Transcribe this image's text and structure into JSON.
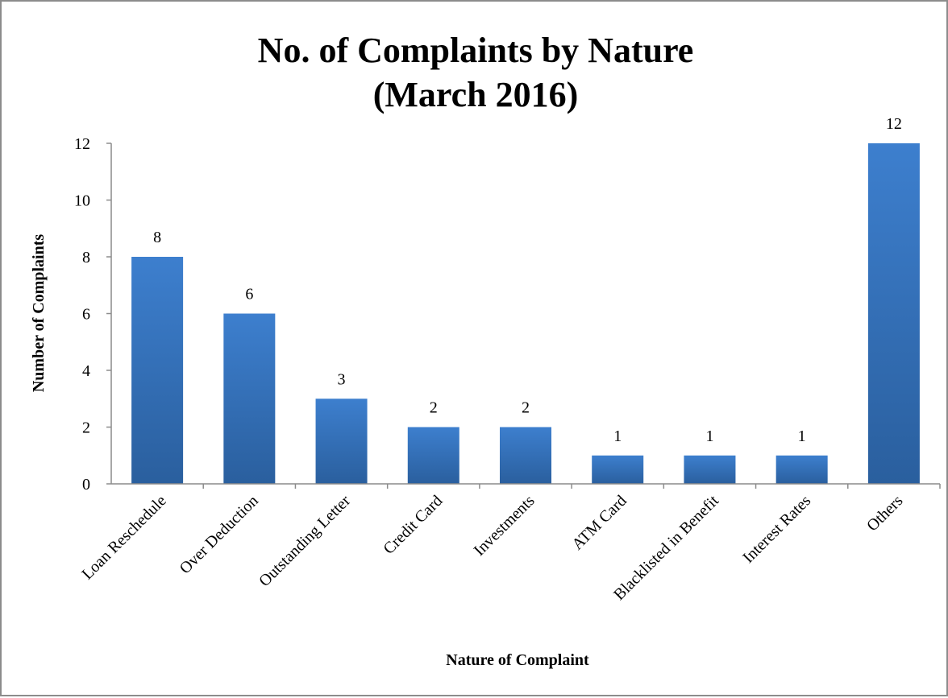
{
  "chart_data": {
    "type": "bar",
    "title_lines": [
      "No. of Complaints by Nature",
      "(March 2016)"
    ],
    "xlabel": "Nature of Complaint",
    "ylabel": "Number of Complaints",
    "categories": [
      "Loan Reschedule",
      "Over Deduction",
      "Outstanding Letter",
      "Credit Card",
      "Investments",
      "ATM Card",
      "Blacklisted in Benefit",
      "Interest Rates",
      "Others"
    ],
    "values": [
      8,
      6,
      3,
      2,
      2,
      1,
      1,
      1,
      12
    ],
    "data_labels": [
      "8",
      "6",
      "3",
      "2",
      "2",
      "1",
      "1",
      "1",
      "12"
    ],
    "ylim": [
      0,
      12
    ],
    "yticks": [
      "0",
      "2",
      "4",
      "6",
      "8",
      "10",
      "12"
    ],
    "grid": false,
    "legend": "none",
    "bar_color_light": "#3d7fce",
    "bar_color_dark": "#2a5f9e",
    "axis_color": "#8c8c8c",
    "frame_border_color": "#8c8c8c"
  }
}
